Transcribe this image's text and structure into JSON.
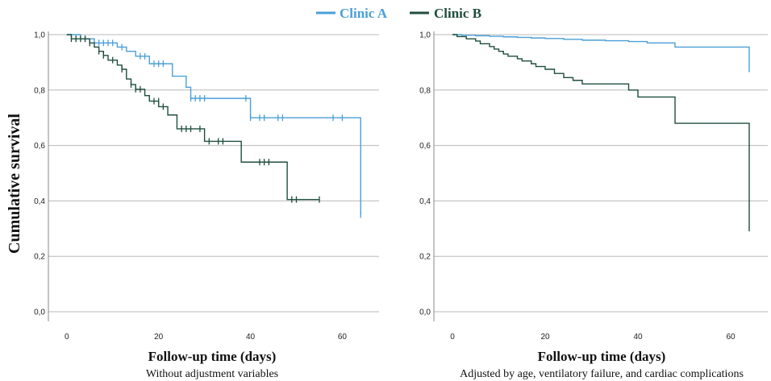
{
  "legend": [
    {
      "label": "Clinic A",
      "color": "#4a9fd8"
    },
    {
      "label": "Clinic B",
      "color": "#1f4e3d"
    }
  ],
  "ylabel": "Cumulative survival",
  "chart_data": [
    {
      "type": "line",
      "xlabel": "Follow-up time (days)",
      "subtitle": "Without adjustment variables",
      "xlim": [
        -4,
        68
      ],
      "ylim": [
        0,
        1.0
      ],
      "x_ticks": [
        0,
        20,
        40,
        60
      ],
      "y_ticks": [
        "0,0",
        "0,2",
        "0,4",
        "0,6",
        "0,8",
        "1,0"
      ],
      "y_tick_values": [
        0,
        0.2,
        0.4,
        0.6,
        0.8,
        1.0
      ],
      "grid": "horizontal",
      "series": [
        {
          "name": "Clinic A",
          "color": "#4a9fd8",
          "steps": [
            [
              0,
              1.0
            ],
            [
              3,
              0.985
            ],
            [
              6,
              0.97
            ],
            [
              11,
              0.955
            ],
            [
              13,
              0.94
            ],
            [
              15,
              0.922
            ],
            [
              18,
              0.895
            ],
            [
              23,
              0.85
            ],
            [
              26,
              0.81
            ],
            [
              27,
              0.77
            ],
            [
              40,
              0.7
            ],
            [
              64,
              0.35
            ]
          ],
          "end": 64,
          "censored": [
            [
              2,
              0.985
            ],
            [
              4,
              0.985
            ],
            [
              7,
              0.97
            ],
            [
              8,
              0.97
            ],
            [
              9,
              0.97
            ],
            [
              10,
              0.97
            ],
            [
              12,
              0.955
            ],
            [
              16,
              0.922
            ],
            [
              17,
              0.922
            ],
            [
              19,
              0.895
            ],
            [
              20,
              0.895
            ],
            [
              21,
              0.895
            ],
            [
              27,
              0.77
            ],
            [
              28,
              0.77
            ],
            [
              29,
              0.77
            ],
            [
              30,
              0.77
            ],
            [
              39,
              0.77
            ],
            [
              40,
              0.7
            ],
            [
              42,
              0.7
            ],
            [
              43,
              0.7
            ],
            [
              46,
              0.7
            ],
            [
              47,
              0.7
            ],
            [
              58,
              0.7
            ],
            [
              60,
              0.7
            ],
            [
              64,
              0.35
            ]
          ]
        },
        {
          "name": "Clinic B",
          "color": "#1f4e3d",
          "steps": [
            [
              0,
              1.0
            ],
            [
              1,
              0.985
            ],
            [
              5,
              0.97
            ],
            [
              6,
              0.955
            ],
            [
              7,
              0.94
            ],
            [
              8,
              0.925
            ],
            [
              9,
              0.908
            ],
            [
              11,
              0.89
            ],
            [
              12,
              0.875
            ],
            [
              13,
              0.84
            ],
            [
              14,
              0.82
            ],
            [
              15,
              0.803
            ],
            [
              17,
              0.78
            ],
            [
              18,
              0.76
            ],
            [
              20,
              0.74
            ],
            [
              22,
              0.71
            ],
            [
              24,
              0.66
            ],
            [
              30,
              0.615
            ],
            [
              38,
              0.54
            ],
            [
              48,
              0.405
            ],
            [
              55,
              0.405
            ]
          ],
          "end": 55,
          "censored": [
            [
              1,
              0.985
            ],
            [
              2,
              0.985
            ],
            [
              3,
              0.985
            ],
            [
              4,
              0.985
            ],
            [
              5,
              0.97
            ],
            [
              7,
              0.94
            ],
            [
              8,
              0.925
            ],
            [
              10,
              0.908
            ],
            [
              12,
              0.875
            ],
            [
              14,
              0.82
            ],
            [
              15,
              0.803
            ],
            [
              16,
              0.803
            ],
            [
              19,
              0.76
            ],
            [
              20,
              0.76
            ],
            [
              21,
              0.74
            ],
            [
              25,
              0.66
            ],
            [
              26,
              0.66
            ],
            [
              27,
              0.66
            ],
            [
              29,
              0.66
            ],
            [
              31,
              0.615
            ],
            [
              33,
              0.615
            ],
            [
              34,
              0.615
            ],
            [
              42,
              0.54
            ],
            [
              43,
              0.54
            ],
            [
              44,
              0.54
            ],
            [
              49,
              0.405
            ],
            [
              50,
              0.405
            ],
            [
              55,
              0.405
            ]
          ]
        }
      ]
    },
    {
      "type": "line",
      "xlabel": "Follow-up time (days)",
      "subtitle": "Adjusted by age, ventilatory failure, and cardiac complications",
      "xlim": [
        -4,
        68
      ],
      "ylim": [
        0,
        1.0
      ],
      "x_ticks": [
        0,
        20,
        40,
        60
      ],
      "y_ticks": [
        "0,0",
        "0,2",
        "0,4",
        "0,6",
        "0,8",
        "1,0"
      ],
      "y_tick_values": [
        0,
        0.2,
        0.4,
        0.6,
        0.8,
        1.0
      ],
      "grid": "horizontal",
      "series": [
        {
          "name": "Clinic A",
          "color": "#4a9fd8",
          "steps": [
            [
              0,
              1.0
            ],
            [
              2,
              0.998
            ],
            [
              5,
              0.996
            ],
            [
              8,
              0.994
            ],
            [
              11,
              0.992
            ],
            [
              14,
              0.99
            ],
            [
              17,
              0.988
            ],
            [
              20,
              0.986
            ],
            [
              24,
              0.983
            ],
            [
              28,
              0.98
            ],
            [
              33,
              0.978
            ],
            [
              38,
              0.975
            ],
            [
              42,
              0.97
            ],
            [
              48,
              0.955
            ],
            [
              64,
              0.865
            ]
          ],
          "end": 64,
          "censored": []
        },
        {
          "name": "Clinic B",
          "color": "#1f4e3d",
          "steps": [
            [
              0,
              1.0
            ],
            [
              1,
              0.993
            ],
            [
              3,
              0.985
            ],
            [
              5,
              0.977
            ],
            [
              6,
              0.967
            ],
            [
              8,
              0.957
            ],
            [
              9,
              0.948
            ],
            [
              10,
              0.94
            ],
            [
              11,
              0.93
            ],
            [
              12,
              0.922
            ],
            [
              14,
              0.913
            ],
            [
              15,
              0.905
            ],
            [
              17,
              0.895
            ],
            [
              18,
              0.885
            ],
            [
              20,
              0.875
            ],
            [
              22,
              0.86
            ],
            [
              24,
              0.845
            ],
            [
              26,
              0.835
            ],
            [
              28,
              0.822
            ],
            [
              38,
              0.8
            ],
            [
              40,
              0.775
            ],
            [
              48,
              0.68
            ],
            [
              64,
              0.29
            ]
          ],
          "end": 64,
          "censored": []
        }
      ]
    }
  ]
}
